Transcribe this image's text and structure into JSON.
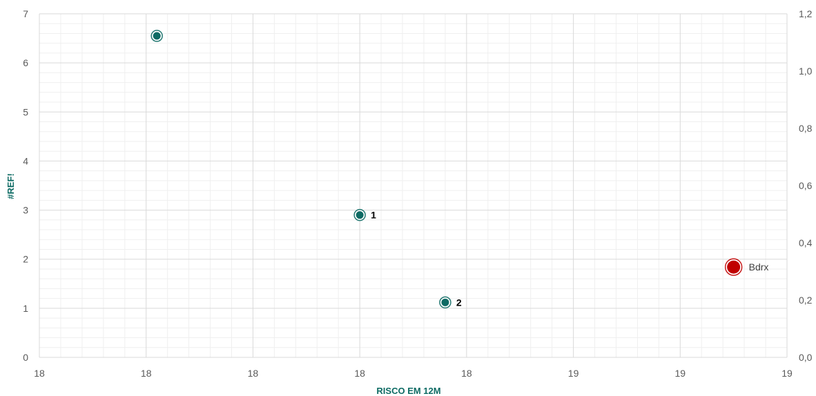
{
  "chart_data": {
    "type": "scatter",
    "xlabel": "RISCO EM 12M",
    "ylabel": "#REF!",
    "x_tick_labels": [
      "18",
      "18",
      "18",
      "18",
      "18",
      "19",
      "19",
      "19"
    ],
    "ylim": [
      0,
      7
    ],
    "y_ticks": [
      0,
      1,
      2,
      3,
      4,
      5,
      6,
      7
    ],
    "y2lim": [
      0,
      1.2
    ],
    "y2_tick_labels": [
      "0,0",
      "0,2",
      "0,4",
      "0,6",
      "0,8",
      "1,0",
      "1,2"
    ],
    "grid": true,
    "points": [
      {
        "x": 18.11,
        "y": 6.55,
        "label": "",
        "color": "#0e6b64",
        "emphasis": false
      },
      {
        "x": 18.3,
        "y": 2.9,
        "label": "1",
        "color": "#0e6b64",
        "emphasis": false
      },
      {
        "x": 18.38,
        "y": 1.12,
        "label": "2",
        "color": "#0e6b64",
        "emphasis": false
      },
      {
        "x": 18.65,
        "y": 1.84,
        "label": "Bdrx",
        "color": "#c00000",
        "emphasis": true
      }
    ]
  },
  "colors": {
    "axis_title": "#0e6b64",
    "major_grid": "#d9d9d9",
    "minor_grid": "#efefef"
  }
}
